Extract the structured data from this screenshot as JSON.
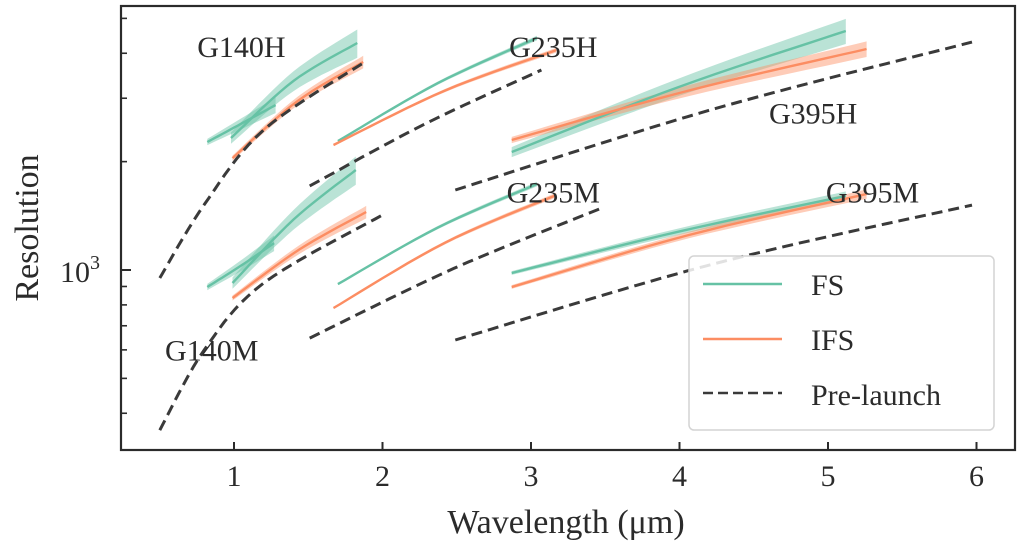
{
  "chart_data": {
    "type": "line",
    "title": "",
    "xlabel": "Wavelength (μm)",
    "ylabel": "Resolution",
    "xscale": "linear",
    "yscale": "log",
    "xlim": [
      0.25,
      6.25
    ],
    "ylim": [
      300,
      5700
    ],
    "xticks": [
      1,
      2,
      3,
      4,
      5,
      6
    ],
    "xtick_labels": [
      "1",
      "2",
      "3",
      "4",
      "5",
      "6"
    ],
    "yticks_major": [
      1000
    ],
    "ytick_major_labels": [
      {
        "base": "10",
        "exp": "3"
      }
    ],
    "yticks_minor": [
      400,
      500,
      600,
      700,
      800,
      900,
      2000,
      3000,
      4000,
      5000
    ],
    "grid": false,
    "legend": {
      "placement": "lower-right",
      "entries": [
        {
          "label": "FS",
          "style": "solid",
          "color": "#66c2a5"
        },
        {
          "label": "IFS",
          "style": "solid",
          "color": "#fc8d62"
        },
        {
          "label": "Pre-launch",
          "style": "dashed",
          "color": "#3a3a3a"
        }
      ]
    },
    "colors": {
      "FS": "#66c2a5",
      "IFS": "#fc8d62",
      "Pre-launch": "#3a3a3a",
      "axis": "#2b2b2b"
    },
    "grating_labels": [
      {
        "text": "G140H",
        "x": 1.05,
        "y": 3900
      },
      {
        "text": "G235H",
        "x": 3.15,
        "y": 3900
      },
      {
        "text": "G395H",
        "x": 4.9,
        "y": 2550
      },
      {
        "text": "G140M",
        "x": 0.85,
        "y": 560
      },
      {
        "text": "G235M",
        "x": 3.15,
        "y": 1540
      },
      {
        "text": "G395M",
        "x": 5.3,
        "y": 1540
      }
    ],
    "series": [
      {
        "name": "G140H FS (short)",
        "group": "FS",
        "band_frac": 0.05,
        "points": [
          [
            0.82,
            2268
          ],
          [
            1.05,
            2550
          ],
          [
            1.28,
            2872
          ]
        ]
      },
      {
        "name": "G140H FS",
        "group": "FS",
        "band_frac": 0.09,
        "points": [
          [
            0.98,
            2327
          ],
          [
            1.4,
            3350
          ],
          [
            1.83,
            4271
          ]
        ]
      },
      {
        "name": "G140H IFS",
        "group": "IFS",
        "band_frac": 0.04,
        "points": [
          [
            0.99,
            2046
          ],
          [
            1.43,
            2950
          ],
          [
            1.87,
            3783
          ]
        ]
      },
      {
        "name": "G140H Pre-launch",
        "group": "Pre-launch",
        "points": [
          [
            0.5,
            950
          ],
          [
            0.8,
            1520
          ],
          [
            1.2,
            2450
          ],
          [
            1.88,
            3783
          ]
        ]
      },
      {
        "name": "G235H FS",
        "group": "FS",
        "band_frac": 0.015,
        "points": [
          [
            1.7,
            2282
          ],
          [
            2.37,
            3300
          ],
          [
            3.04,
            4410
          ]
        ]
      },
      {
        "name": "G235H IFS",
        "group": "IFS",
        "band_frac": 0.015,
        "points": [
          [
            1.67,
            2225
          ],
          [
            2.42,
            3150
          ],
          [
            3.17,
            4081
          ]
        ]
      },
      {
        "name": "G235H Pre-launch",
        "group": "Pre-launch",
        "points": [
          [
            1.51,
            1712
          ],
          [
            2.29,
            2550
          ],
          [
            3.07,
            3593
          ]
        ]
      },
      {
        "name": "G395H FS",
        "group": "FS",
        "band_frac": 0.08,
        "points": [
          [
            2.87,
            2127
          ],
          [
            4.0,
            3230
          ],
          [
            5.12,
            4613
          ]
        ]
      },
      {
        "name": "G395H IFS",
        "group": "IFS",
        "band_frac": 0.05,
        "points": [
          [
            2.87,
            2297
          ],
          [
            4.06,
            3150
          ],
          [
            5.26,
            4110
          ]
        ]
      },
      {
        "name": "G395H Pre-launch",
        "group": "Pre-launch",
        "points": [
          [
            2.49,
            1668
          ],
          [
            4.23,
            2800
          ],
          [
            5.97,
            4295
          ]
        ]
      },
      {
        "name": "G140M FS (short)",
        "group": "FS",
        "band_frac": 0.05,
        "points": [
          [
            0.82,
            897
          ],
          [
            1.05,
            1030
          ],
          [
            1.27,
            1188
          ]
        ]
      },
      {
        "name": "G140M FS",
        "group": "FS",
        "band_frac": 0.09,
        "points": [
          [
            0.99,
            920
          ],
          [
            1.4,
            1380
          ],
          [
            1.82,
            1896
          ]
        ]
      },
      {
        "name": "G140M IFS",
        "group": "IFS",
        "band_frac": 0.04,
        "points": [
          [
            0.99,
            836
          ],
          [
            1.44,
            1140
          ],
          [
            1.89,
            1449
          ]
        ]
      },
      {
        "name": "G140M Pre-launch",
        "group": "Pre-launch",
        "points": [
          [
            0.5,
            359
          ],
          [
            0.8,
            600
          ],
          [
            1.2,
            920
          ],
          [
            2.0,
            1422
          ]
        ]
      },
      {
        "name": "G235M FS",
        "group": "FS",
        "band_frac": 0.015,
        "points": [
          [
            1.7,
            914
          ],
          [
            2.37,
            1310
          ],
          [
            3.04,
            1733
          ]
        ]
      },
      {
        "name": "G235M IFS",
        "group": "IFS",
        "band_frac": 0.015,
        "points": [
          [
            1.67,
            784
          ],
          [
            2.42,
            1190
          ],
          [
            3.17,
            1615
          ]
        ]
      },
      {
        "name": "G235M Pre-launch",
        "group": "Pre-launch",
        "points": [
          [
            1.51,
            647
          ],
          [
            2.48,
            1010
          ],
          [
            3.46,
            1477
          ]
        ]
      },
      {
        "name": "G395M FS",
        "group": "FS",
        "band_frac": 0.03,
        "points": [
          [
            2.87,
            981
          ],
          [
            4.0,
            1280
          ],
          [
            5.12,
            1605
          ]
        ]
      },
      {
        "name": "G395M IFS",
        "group": "IFS",
        "band_frac": 0.03,
        "points": [
          [
            2.87,
            897
          ],
          [
            4.06,
            1250
          ],
          [
            5.26,
            1626
          ]
        ]
      },
      {
        "name": "G395M Pre-launch",
        "group": "Pre-launch",
        "points": [
          [
            2.49,
            639
          ],
          [
            4.23,
            1040
          ],
          [
            5.97,
            1515
          ]
        ]
      }
    ]
  }
}
